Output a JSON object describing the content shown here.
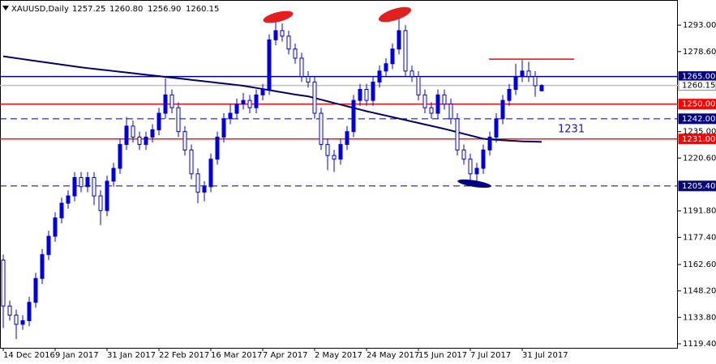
{
  "chart_data": {
    "type": "candlestick",
    "symbol": "XAUUSD,Daily",
    "ohlc_text": [
      "1257.25",
      "1260.80",
      "1256.90",
      "1260.15"
    ],
    "categories": [
      "14 Dec 2016",
      null,
      null,
      null,
      null,
      null,
      null,
      null,
      "9 Jan 2017",
      null,
      null,
      null,
      null,
      null,
      null,
      null,
      "31 Jan 2017",
      null,
      null,
      null,
      null,
      null,
      null,
      null,
      "22 Feb 2017",
      null,
      null,
      null,
      null,
      null,
      null,
      null,
      "16 Mar 2017",
      null,
      null,
      null,
      null,
      null,
      null,
      null,
      "7 Apr 2017",
      null,
      null,
      null,
      null,
      null,
      null,
      null,
      "2 May 2017",
      null,
      null,
      null,
      null,
      null,
      null,
      null,
      "24 May 2017",
      null,
      null,
      null,
      null,
      null,
      null,
      null,
      "15 Jun 2017",
      null,
      null,
      null,
      null,
      null,
      null,
      null,
      "7 Jul 2017",
      null,
      null,
      null,
      null,
      null,
      null,
      null,
      "31 Jul 2017",
      null,
      null,
      null
    ],
    "open": [
      1165,
      1140,
      1135,
      1130,
      1132,
      1142,
      1155,
      1168,
      1178,
      1188,
      1196,
      1200,
      1210,
      1205,
      1210,
      1200,
      1192,
      1208,
      1215,
      1228,
      1238,
      1232,
      1228,
      1232,
      1236,
      1245,
      1255,
      1248,
      1235,
      1225,
      1212,
      1202,
      1205,
      1220,
      1232,
      1242,
      1245,
      1250,
      1252,
      1248,
      1255,
      1258,
      1285,
      1290,
      1287,
      1280,
      1275,
      1265,
      1262,
      1245,
      1228,
      1222,
      1220,
      1228,
      1235,
      1252,
      1258,
      1252,
      1262,
      1268,
      1272,
      1280,
      1290,
      1268,
      1265,
      1255,
      1248,
      1245,
      1255,
      1250,
      1242,
      1225,
      1220,
      1212,
      1215,
      1225,
      1232,
      1242,
      1252,
      1258,
      1265,
      1268,
      1265,
      1257.25
    ],
    "high": [
      1168,
      1143,
      1138,
      1135,
      1145,
      1158,
      1171,
      1181,
      1191,
      1199,
      1203,
      1213,
      1213,
      1213,
      1213,
      1203,
      1211,
      1218,
      1231,
      1243,
      1241,
      1235,
      1235,
      1239,
      1248,
      1264,
      1258,
      1251,
      1238,
      1228,
      1215,
      1208,
      1223,
      1235,
      1245,
      1250,
      1253,
      1256,
      1255,
      1258,
      1261,
      1288,
      1296,
      1294,
      1290,
      1283,
      1278,
      1268,
      1265,
      1248,
      1231,
      1225,
      1231,
      1238,
      1255,
      1261,
      1261,
      1265,
      1271,
      1275,
      1283,
      1297,
      1293,
      1271,
      1268,
      1258,
      1251,
      1258,
      1258,
      1253,
      1245,
      1228,
      1223,
      1218,
      1228,
      1235,
      1245,
      1255,
      1261,
      1272,
      1274,
      1273,
      1268,
      1260.8
    ],
    "low": [
      1128,
      1132,
      1122,
      1127,
      1129,
      1139,
      1152,
      1165,
      1175,
      1185,
      1193,
      1197,
      1202,
      1202,
      1195,
      1184,
      1189,
      1205,
      1212,
      1225,
      1229,
      1225,
      1225,
      1229,
      1233,
      1242,
      1245,
      1232,
      1222,
      1209,
      1196,
      1197,
      1202,
      1217,
      1229,
      1239,
      1242,
      1247,
      1245,
      1245,
      1252,
      1255,
      1282,
      1284,
      1277,
      1272,
      1262,
      1259,
      1242,
      1225,
      1214,
      1213,
      1217,
      1225,
      1232,
      1249,
      1249,
      1249,
      1259,
      1265,
      1269,
      1277,
      1265,
      1262,
      1252,
      1245,
      1242,
      1242,
      1247,
      1239,
      1222,
      1217,
      1206,
      1208,
      1212,
      1222,
      1229,
      1239,
      1249,
      1255,
      1262,
      1262,
      1254,
      1256.9
    ],
    "close": [
      1140,
      1135,
      1130,
      1132,
      1142,
      1155,
      1168,
      1178,
      1188,
      1196,
      1200,
      1210,
      1205,
      1210,
      1200,
      1192,
      1208,
      1215,
      1228,
      1238,
      1232,
      1228,
      1232,
      1236,
      1245,
      1255,
      1248,
      1235,
      1225,
      1212,
      1202,
      1205,
      1220,
      1232,
      1242,
      1245,
      1250,
      1252,
      1248,
      1255,
      1258,
      1285,
      1290,
      1287,
      1280,
      1275,
      1265,
      1262,
      1245,
      1228,
      1222,
      1220,
      1228,
      1235,
      1252,
      1258,
      1252,
      1262,
      1268,
      1272,
      1280,
      1290,
      1268,
      1265,
      1255,
      1248,
      1245,
      1255,
      1250,
      1242,
      1225,
      1220,
      1212,
      1215,
      1225,
      1232,
      1242,
      1252,
      1258,
      1265,
      1268,
      1265,
      1260,
      1260.15
    ],
    "candle_color": "#0000dd",
    "moving_average": {
      "color": "#000066",
      "values": [
        1276,
        1275.5,
        1275,
        1274.5,
        1274,
        1273.5,
        1273,
        1272.5,
        1272,
        1271.5,
        1271,
        1270.5,
        1270,
        1269.6,
        1269.2,
        1268.8,
        1268.4,
        1268,
        1267.6,
        1267.2,
        1266.8,
        1266.4,
        1266,
        1265.6,
        1265.2,
        1264.8,
        1264.4,
        1264,
        1263.6,
        1263.2,
        1262.8,
        1262.4,
        1262,
        1261.6,
        1261.2,
        1260.8,
        1260.4,
        1260,
        1259.4,
        1258.8,
        1258.2,
        1257.6,
        1257,
        1256.4,
        1255.8,
        1255.2,
        1254.7,
        1254.2,
        1253.3,
        1252.4,
        1251.5,
        1250.6,
        1249.7,
        1248.8,
        1247.9,
        1247,
        1246.1,
        1245.3,
        1244.5,
        1243.7,
        1242.9,
        1242.1,
        1241.3,
        1240.5,
        1239.7,
        1238.9,
        1238.1,
        1237.3,
        1236.5,
        1235.6,
        1234.7,
        1233.8,
        1232.9,
        1232,
        1231.1,
        1230.8,
        1230.5,
        1230.3,
        1230.1,
        1229.9,
        1229.7,
        1229.6,
        1229.5,
        1229.4
      ]
    },
    "levels": [
      {
        "value": 1265,
        "label": "1265.00",
        "color": "#000080",
        "style": "solid"
      },
      {
        "value": 1260.15,
        "label": "1260.15",
        "color": "#c0c0c0",
        "style": "solid"
      },
      {
        "value": 1250,
        "label": "1250.00",
        "color": "#ff0000",
        "style": "solid"
      },
      {
        "value": 1242,
        "label": "1242.00",
        "color": "#000080",
        "style": "dashed"
      },
      {
        "value": 1231,
        "label": "1231.00",
        "color": "#ff0000",
        "style": "solid"
      },
      {
        "value": 1205.4,
        "label": "1205.40",
        "color": "#000080",
        "style": "dashed"
      }
    ],
    "resistance_segment": {
      "value": 1274.5,
      "color": "#ff0000"
    },
    "annotation_text": "1231",
    "ylim": [
      1117.2,
      1306.7
    ],
    "yticks": [
      {
        "value": 1293,
        "label": "1293.00"
      },
      {
        "value": 1278.6,
        "label": "1278.60"
      },
      {
        "value": 1235,
        "label": "1235.00"
      },
      {
        "value": 1220.6,
        "label": "1220.60"
      },
      {
        "value": 1191.8,
        "label": "1191.80"
      },
      {
        "value": 1177.4,
        "label": "1177.40"
      },
      {
        "value": 1162.6,
        "label": "1162.60"
      },
      {
        "value": 1148.2,
        "label": "1148.20"
      },
      {
        "value": 1133.8,
        "label": "1133.80"
      },
      {
        "value": 1119.4,
        "label": "1119.40"
      }
    ]
  }
}
